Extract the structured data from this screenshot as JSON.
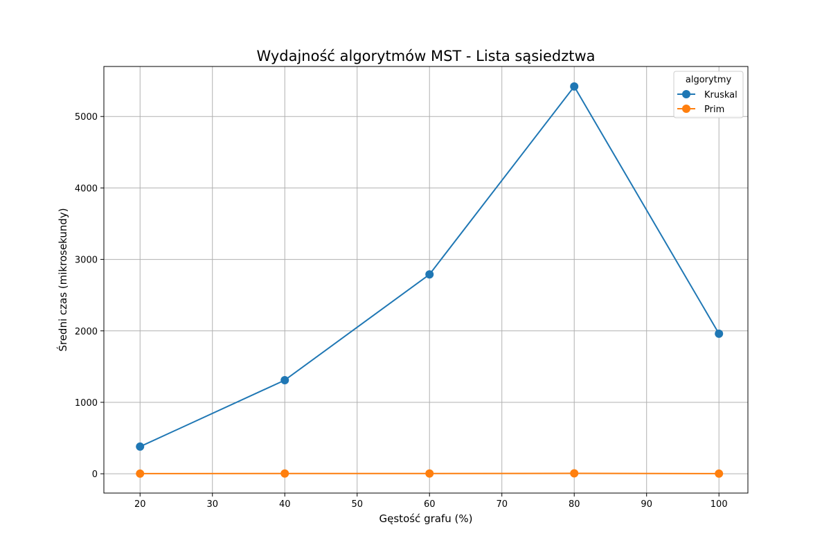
{
  "chart_data": {
    "type": "line",
    "title": "Wydajność algorytmów MST - Lista sąsiedztwa",
    "xlabel": "Gęstość grafu (%)",
    "ylabel": "Średni czas (mikrosekundy)",
    "x": [
      20,
      40,
      60,
      80,
      100
    ],
    "xlim": [
      15,
      104
    ],
    "ylim": [
      -270,
      5700
    ],
    "xticks": [
      20,
      30,
      40,
      50,
      60,
      70,
      80,
      90,
      100
    ],
    "yticks": [
      0,
      1000,
      2000,
      3000,
      4000,
      5000
    ],
    "grid": true,
    "legend": {
      "title": "algorytmy",
      "placement": "top-right"
    },
    "series": [
      {
        "name": "Kruskal",
        "color": "#1f77b4",
        "values": [
          380,
          1310,
          2790,
          5420,
          1960
        ]
      },
      {
        "name": "Prim",
        "color": "#ff7f0e",
        "values": [
          2,
          4,
          4,
          6,
          2
        ]
      }
    ]
  }
}
